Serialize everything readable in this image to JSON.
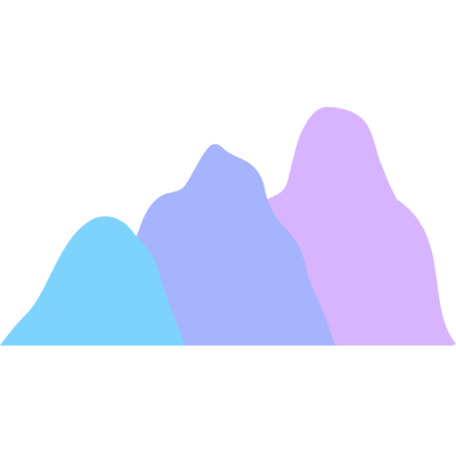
{
  "illustration": {
    "icon": "mountains-icon",
    "background": "#ffffff",
    "peaks": [
      {
        "id": "back-peak",
        "color": "#d8b4fe"
      },
      {
        "id": "middle-peak",
        "color": "#a5b4fc"
      },
      {
        "id": "front-peak",
        "color": "#7dd3fc"
      }
    ]
  }
}
